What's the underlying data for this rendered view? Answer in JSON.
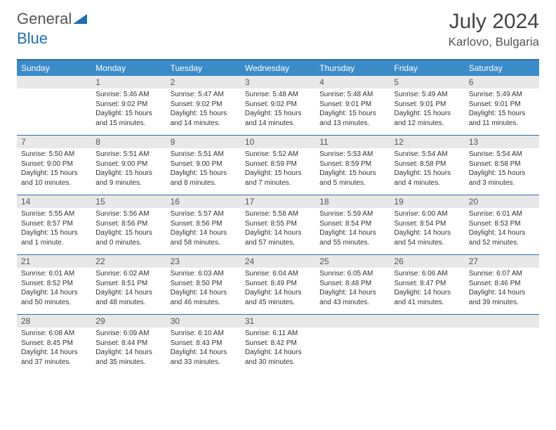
{
  "logo": {
    "text1": "General",
    "text2": "Blue"
  },
  "title": "July 2024",
  "location": "Karlovo, Bulgaria",
  "colors": {
    "header_bg": "#3b8bc9",
    "border": "#2f6fa8",
    "daynum_bg": "#e8e8e8",
    "text": "#333333",
    "title": "#444444"
  },
  "day_names": [
    "Sunday",
    "Monday",
    "Tuesday",
    "Wednesday",
    "Thursday",
    "Friday",
    "Saturday"
  ],
  "weeks": [
    {
      "nums": [
        "",
        "1",
        "2",
        "3",
        "4",
        "5",
        "6"
      ],
      "details": [
        "",
        "Sunrise: 5:46 AM\nSunset: 9:02 PM\nDaylight: 15 hours and 15 minutes.",
        "Sunrise: 5:47 AM\nSunset: 9:02 PM\nDaylight: 15 hours and 14 minutes.",
        "Sunrise: 5:48 AM\nSunset: 9:02 PM\nDaylight: 15 hours and 14 minutes.",
        "Sunrise: 5:48 AM\nSunset: 9:01 PM\nDaylight: 15 hours and 13 minutes.",
        "Sunrise: 5:49 AM\nSunset: 9:01 PM\nDaylight: 15 hours and 12 minutes.",
        "Sunrise: 5:49 AM\nSunset: 9:01 PM\nDaylight: 15 hours and 11 minutes."
      ]
    },
    {
      "nums": [
        "7",
        "8",
        "9",
        "10",
        "11",
        "12",
        "13"
      ],
      "details": [
        "Sunrise: 5:50 AM\nSunset: 9:00 PM\nDaylight: 15 hours and 10 minutes.",
        "Sunrise: 5:51 AM\nSunset: 9:00 PM\nDaylight: 15 hours and 9 minutes.",
        "Sunrise: 5:51 AM\nSunset: 9:00 PM\nDaylight: 15 hours and 8 minutes.",
        "Sunrise: 5:52 AM\nSunset: 8:59 PM\nDaylight: 15 hours and 7 minutes.",
        "Sunrise: 5:53 AM\nSunset: 8:59 PM\nDaylight: 15 hours and 5 minutes.",
        "Sunrise: 5:54 AM\nSunset: 8:58 PM\nDaylight: 15 hours and 4 minutes.",
        "Sunrise: 5:54 AM\nSunset: 8:58 PM\nDaylight: 15 hours and 3 minutes."
      ]
    },
    {
      "nums": [
        "14",
        "15",
        "16",
        "17",
        "18",
        "19",
        "20"
      ],
      "details": [
        "Sunrise: 5:55 AM\nSunset: 8:57 PM\nDaylight: 15 hours and 1 minute.",
        "Sunrise: 5:56 AM\nSunset: 8:56 PM\nDaylight: 15 hours and 0 minutes.",
        "Sunrise: 5:57 AM\nSunset: 8:56 PM\nDaylight: 14 hours and 58 minutes.",
        "Sunrise: 5:58 AM\nSunset: 8:55 PM\nDaylight: 14 hours and 57 minutes.",
        "Sunrise: 5:59 AM\nSunset: 8:54 PM\nDaylight: 14 hours and 55 minutes.",
        "Sunrise: 6:00 AM\nSunset: 8:54 PM\nDaylight: 14 hours and 54 minutes.",
        "Sunrise: 6:01 AM\nSunset: 8:53 PM\nDaylight: 14 hours and 52 minutes."
      ]
    },
    {
      "nums": [
        "21",
        "22",
        "23",
        "24",
        "25",
        "26",
        "27"
      ],
      "details": [
        "Sunrise: 6:01 AM\nSunset: 8:52 PM\nDaylight: 14 hours and 50 minutes.",
        "Sunrise: 6:02 AM\nSunset: 8:51 PM\nDaylight: 14 hours and 48 minutes.",
        "Sunrise: 6:03 AM\nSunset: 8:50 PM\nDaylight: 14 hours and 46 minutes.",
        "Sunrise: 6:04 AM\nSunset: 8:49 PM\nDaylight: 14 hours and 45 minutes.",
        "Sunrise: 6:05 AM\nSunset: 8:48 PM\nDaylight: 14 hours and 43 minutes.",
        "Sunrise: 6:06 AM\nSunset: 8:47 PM\nDaylight: 14 hours and 41 minutes.",
        "Sunrise: 6:07 AM\nSunset: 8:46 PM\nDaylight: 14 hours and 39 minutes."
      ]
    },
    {
      "nums": [
        "28",
        "29",
        "30",
        "31",
        "",
        "",
        ""
      ],
      "details": [
        "Sunrise: 6:08 AM\nSunset: 8:45 PM\nDaylight: 14 hours and 37 minutes.",
        "Sunrise: 6:09 AM\nSunset: 8:44 PM\nDaylight: 14 hours and 35 minutes.",
        "Sunrise: 6:10 AM\nSunset: 8:43 PM\nDaylight: 14 hours and 33 minutes.",
        "Sunrise: 6:11 AM\nSunset: 8:42 PM\nDaylight: 14 hours and 30 minutes.",
        "",
        "",
        ""
      ]
    }
  ]
}
